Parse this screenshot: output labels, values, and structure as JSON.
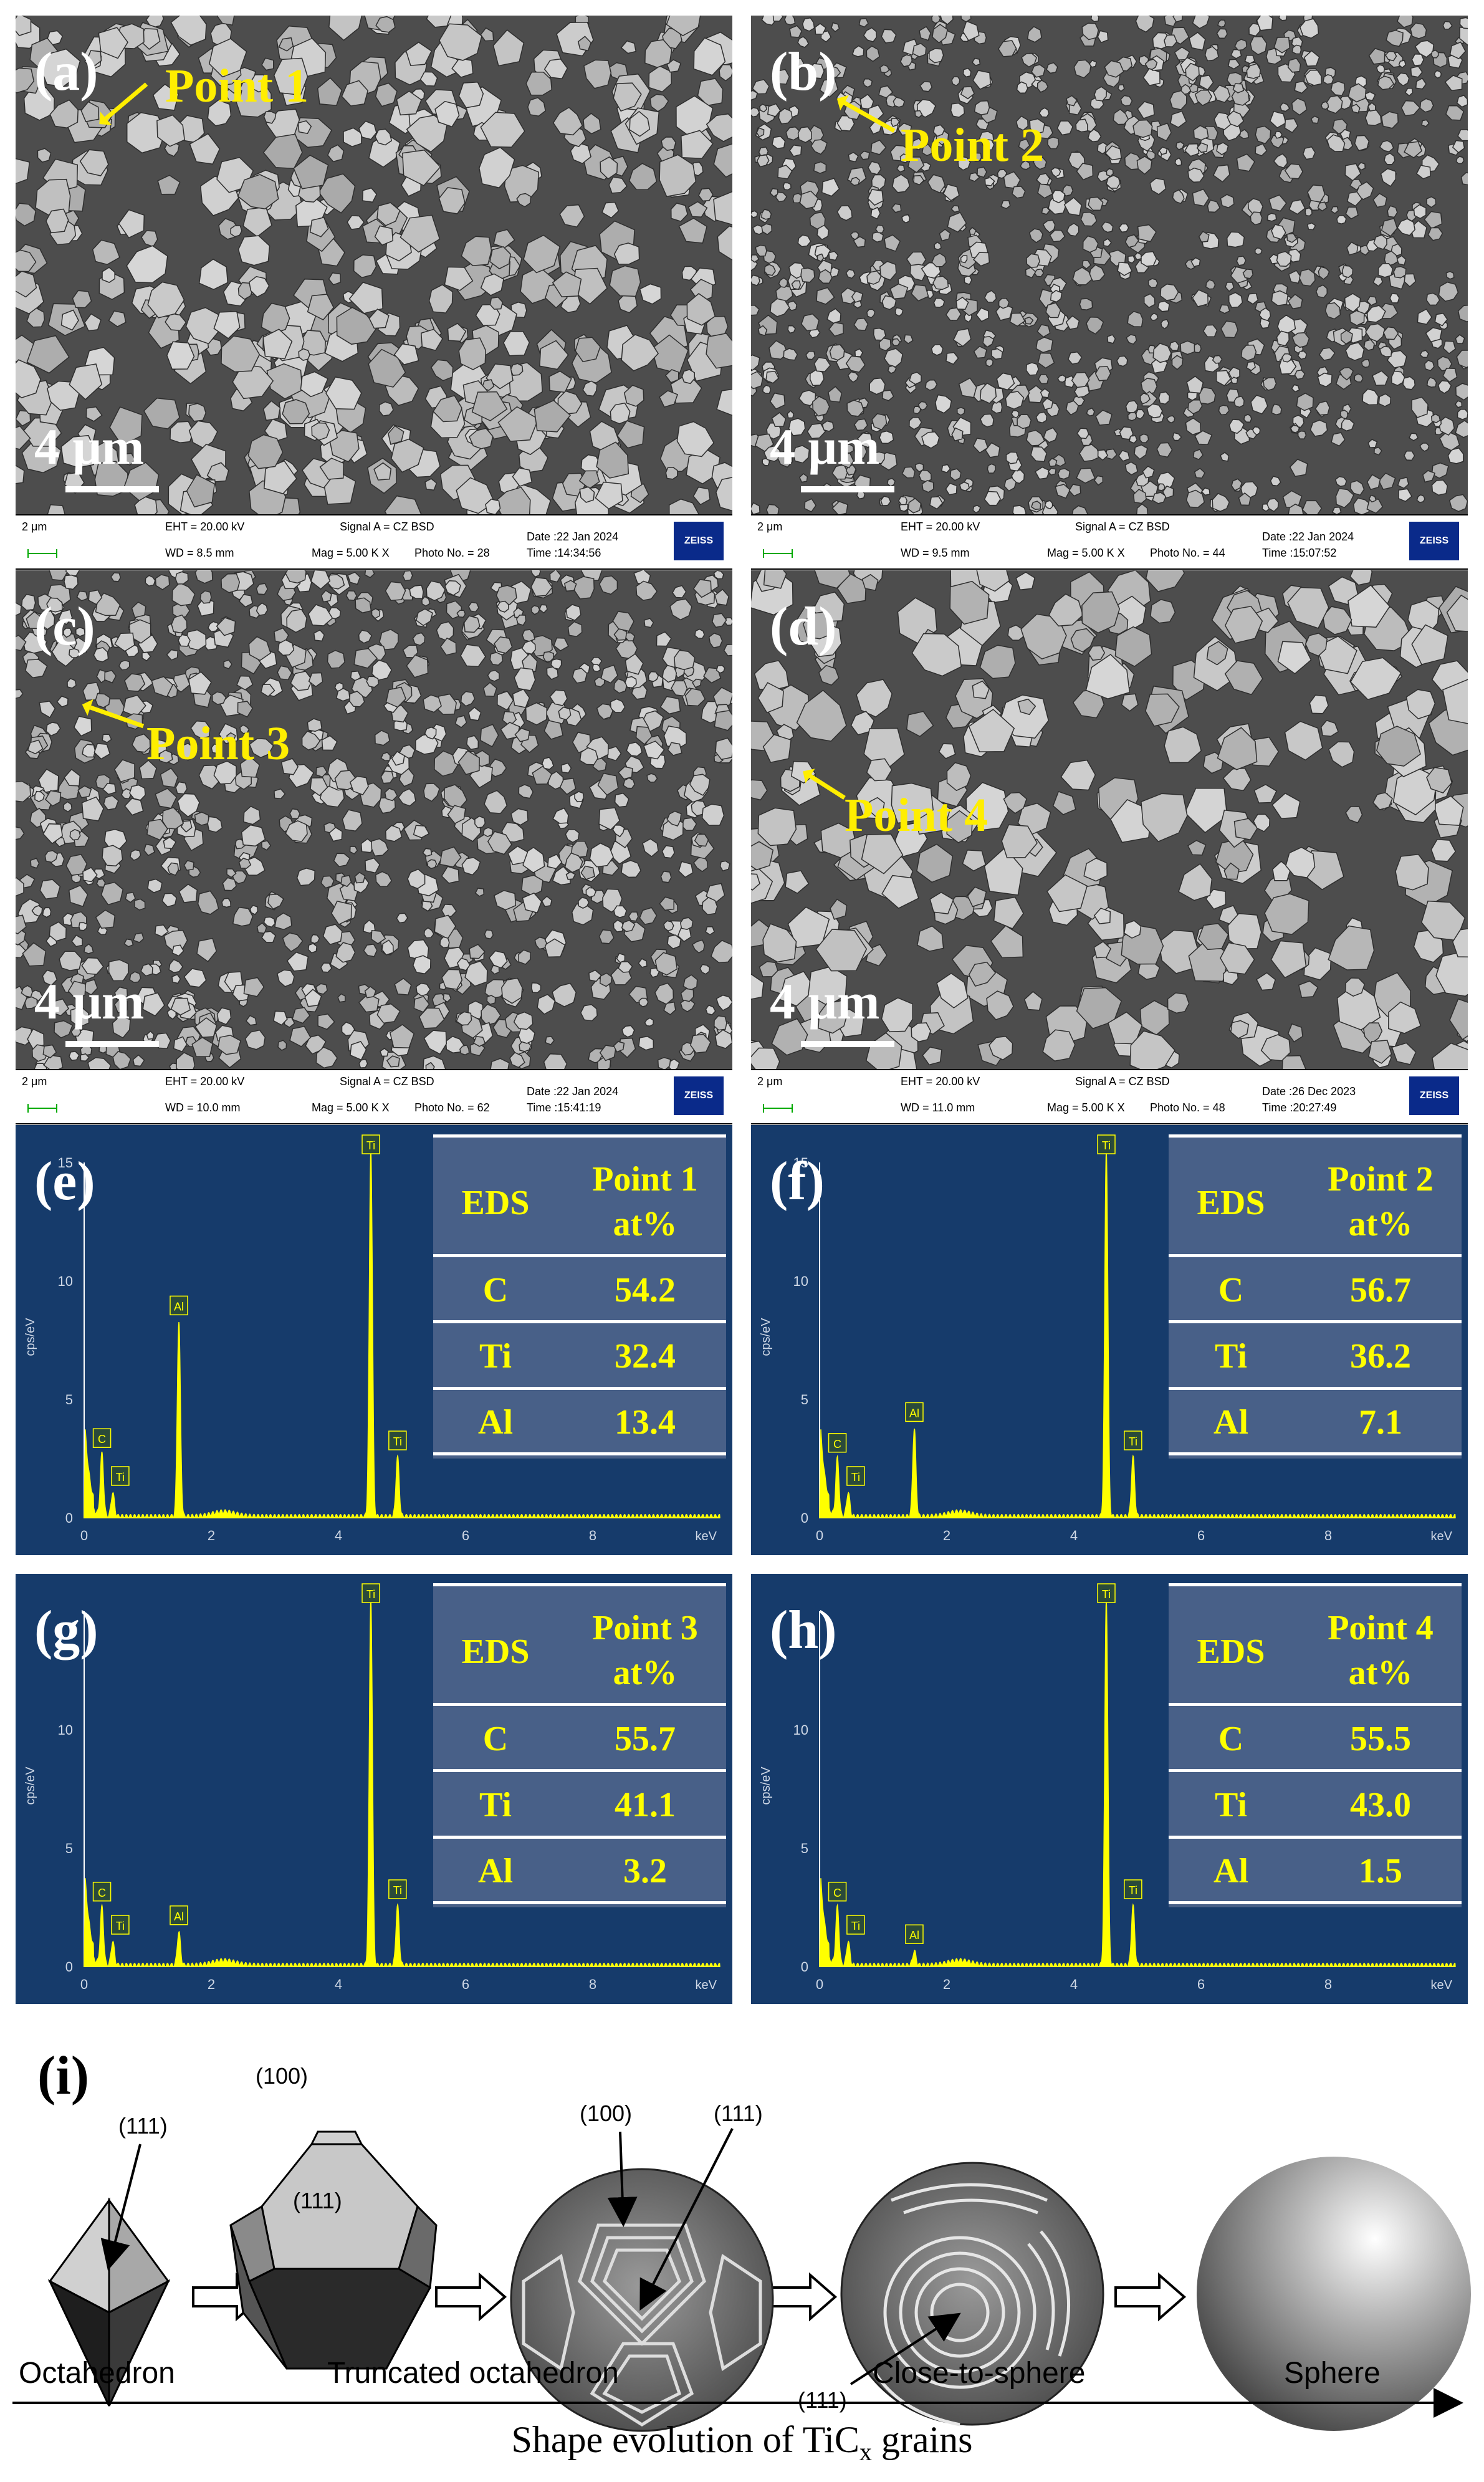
{
  "sem_panels": [
    {
      "label": "(a)",
      "point": "Point 1",
      "scale": "4 μm",
      "bar": "2 μm",
      "eht": "EHT = 20.00 kV",
      "wd": "WD =  8.5 mm",
      "signal": "Signal A = CZ BSD",
      "mag": "Mag =   5.00 K X",
      "photo": "Photo No. = 28",
      "date": "Date :22 Jan 2024",
      "time": "Time :14:34:56",
      "logo": "ZEISS"
    },
    {
      "label": "(b)",
      "point": "Point 2",
      "scale": "4 μm",
      "bar": "2 μm",
      "eht": "EHT = 20.00 kV",
      "wd": "WD =  9.5 mm",
      "signal": "Signal A = CZ BSD",
      "mag": "Mag =   5.00 K X",
      "photo": "Photo No. = 44",
      "date": "Date :22 Jan 2024",
      "time": "Time :15:07:52",
      "logo": "ZEISS"
    },
    {
      "label": "(c)",
      "point": "Point 3",
      "scale": "4 μm",
      "bar": "2 μm",
      "eht": "EHT = 20.00 kV",
      "wd": "WD = 10.0 mm",
      "signal": "Signal A = CZ BSD",
      "mag": "Mag =   5.00 K X",
      "photo": "Photo No. = 62",
      "date": "Date :22 Jan 2024",
      "time": "Time :15:41:19",
      "logo": "ZEISS"
    },
    {
      "label": "(d)",
      "point": "Point 4",
      "scale": "4 μm",
      "bar": "2 μm",
      "eht": "EHT = 20.00 kV",
      "wd": "WD = 11.0 mm",
      "signal": "Signal A = CZ BSD",
      "mag": "Mag =   5.00 K X",
      "photo": "Photo No. = 48",
      "date": "Date :26 Dec 2023",
      "time": "Time :20:27:49",
      "logo": "ZEISS"
    }
  ],
  "chart_data": [
    {
      "type": "line",
      "label": "(e)",
      "ylabel": "cps/eV",
      "xlabel": "keV",
      "xlim": [
        0,
        10
      ],
      "ylim": [
        0,
        15
      ],
      "yticks": [
        0,
        5,
        10,
        15
      ],
      "xticks": [
        0,
        2,
        4,
        6,
        8
      ],
      "peaks": [
        {
          "element": "C",
          "x": 0.28,
          "y": 2.6
        },
        {
          "element": "Ti",
          "x": 0.45,
          "y": 1.0
        },
        {
          "element": "Al",
          "x": 1.49,
          "y": 8.2
        },
        {
          "element": "Ti",
          "x": 4.51,
          "y": 15.5
        },
        {
          "element": "Ti",
          "x": 4.93,
          "y": 2.5
        }
      ],
      "table": {
        "header": [
          "EDS",
          "Point 1",
          "at%"
        ],
        "rows": [
          [
            "C",
            "54.2"
          ],
          [
            "Ti",
            "32.4"
          ],
          [
            "Al",
            "13.4"
          ]
        ]
      }
    },
    {
      "type": "line",
      "label": "(f)",
      "ylabel": "cps/eV",
      "xlabel": "keV",
      "xlim": [
        0,
        10
      ],
      "ylim": [
        0,
        15
      ],
      "yticks": [
        0,
        5,
        10,
        15
      ],
      "xticks": [
        0,
        2,
        4,
        6,
        8
      ],
      "peaks": [
        {
          "element": "C",
          "x": 0.28,
          "y": 2.4
        },
        {
          "element": "Ti",
          "x": 0.45,
          "y": 1.0
        },
        {
          "element": "Al",
          "x": 1.49,
          "y": 3.7
        },
        {
          "element": "Ti",
          "x": 4.51,
          "y": 15.5
        },
        {
          "element": "Ti",
          "x": 4.93,
          "y": 2.5
        }
      ],
      "table": {
        "header": [
          "EDS",
          "Point 2",
          "at%"
        ],
        "rows": [
          [
            "C",
            "56.7"
          ],
          [
            "Ti",
            "36.2"
          ],
          [
            "Al",
            "7.1"
          ]
        ]
      }
    },
    {
      "type": "line",
      "label": "(g)",
      "ylabel": "cps/eV",
      "xlabel": "keV",
      "xlim": [
        0,
        10
      ],
      "ylim": [
        0,
        15
      ],
      "yticks": [
        0,
        5,
        10
      ],
      "xticks": [
        0,
        2,
        4,
        6,
        8
      ],
      "peaks": [
        {
          "element": "C",
          "x": 0.28,
          "y": 2.4
        },
        {
          "element": "Ti",
          "x": 0.45,
          "y": 1.0
        },
        {
          "element": "Al",
          "x": 1.49,
          "y": 1.4
        },
        {
          "element": "Ti",
          "x": 4.51,
          "y": 15.5
        },
        {
          "element": "Ti",
          "x": 4.93,
          "y": 2.5
        }
      ],
      "table": {
        "header": [
          "EDS",
          "Point 3",
          "at%"
        ],
        "rows": [
          [
            "C",
            "55.7"
          ],
          [
            "Ti",
            "41.1"
          ],
          [
            "Al",
            "3.2"
          ]
        ]
      }
    },
    {
      "type": "line",
      "label": "(h)",
      "ylabel": "cps/eV",
      "xlabel": "keV",
      "xlim": [
        0,
        10
      ],
      "ylim": [
        0,
        15
      ],
      "yticks": [
        0,
        5,
        10
      ],
      "xticks": [
        0,
        2,
        4,
        6,
        8
      ],
      "peaks": [
        {
          "element": "C",
          "x": 0.28,
          "y": 2.4
        },
        {
          "element": "Ti",
          "x": 0.45,
          "y": 1.0
        },
        {
          "element": "Al",
          "x": 1.49,
          "y": 0.6
        },
        {
          "element": "Ti",
          "x": 4.51,
          "y": 15.5
        },
        {
          "element": "Ti",
          "x": 4.93,
          "y": 2.5
        }
      ],
      "table": {
        "header": [
          "EDS",
          "Point 4",
          "at%"
        ],
        "rows": [
          [
            "C",
            "55.5"
          ],
          [
            "Ti",
            "43.0"
          ],
          [
            "Al",
            "1.5"
          ]
        ]
      }
    }
  ],
  "evolution": {
    "label": "(i)",
    "faces": {
      "f111a": "(111)",
      "f100a": "(100)",
      "f111b": "(111)",
      "f100b": "(100)",
      "f111c": "(111)",
      "f111d": "(111)"
    },
    "stages": [
      "Octahedron",
      "Truncated octahedron",
      "Close-to-sphere",
      "Sphere"
    ],
    "caption_main": "Shape evolution of TiC",
    "caption_sub": "x",
    "caption_end": " grains"
  },
  "colors": {
    "point_label": "#ffee00",
    "spectrum": "#ffff00",
    "eds_bg": "#163b6b"
  }
}
